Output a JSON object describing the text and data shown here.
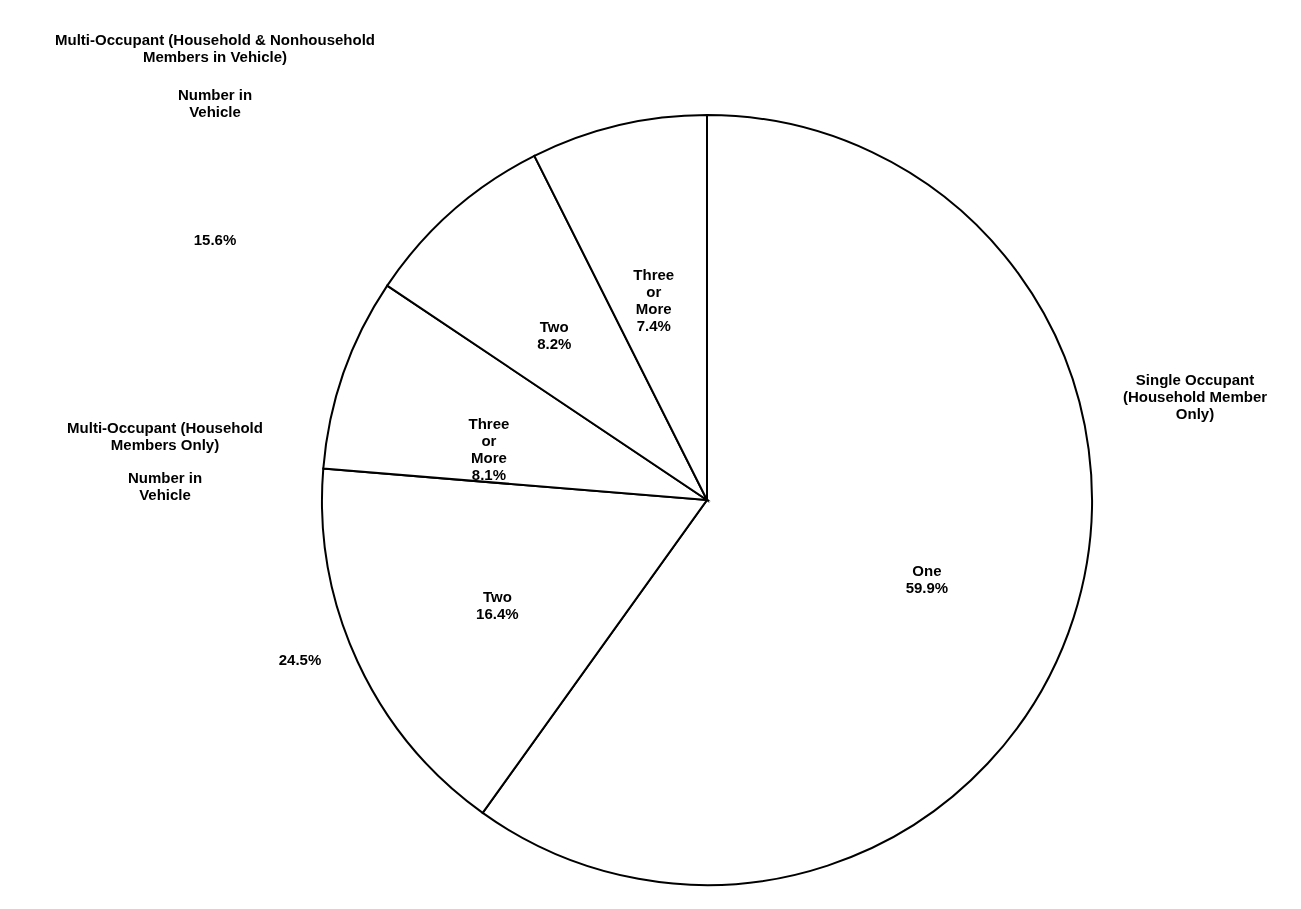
{
  "chart_data": {
    "type": "pie",
    "categories": [
      "One",
      "Two",
      "Three or More",
      "Two",
      "Three or More"
    ],
    "values": [
      59.9,
      16.4,
      8.1,
      8.2,
      7.4
    ],
    "value_labels": [
      "59.9%",
      "16.4%",
      "8.1%",
      "8.2%",
      "7.4%"
    ],
    "colors": [
      "#ffffff",
      "#ffffff",
      "#ffffff",
      "#ffffff",
      "#ffffff"
    ],
    "annotations": [
      "Single Occupant (Household Member Only)",
      "Multi-Occupant (Household Members Only)",
      "Number in Vehicle",
      "Multi-Occupant (Household & Nonhousehold Members in Vehicle)",
      "Number in Vehicle",
      "15.6%",
      "24.5%"
    ]
  }
}
